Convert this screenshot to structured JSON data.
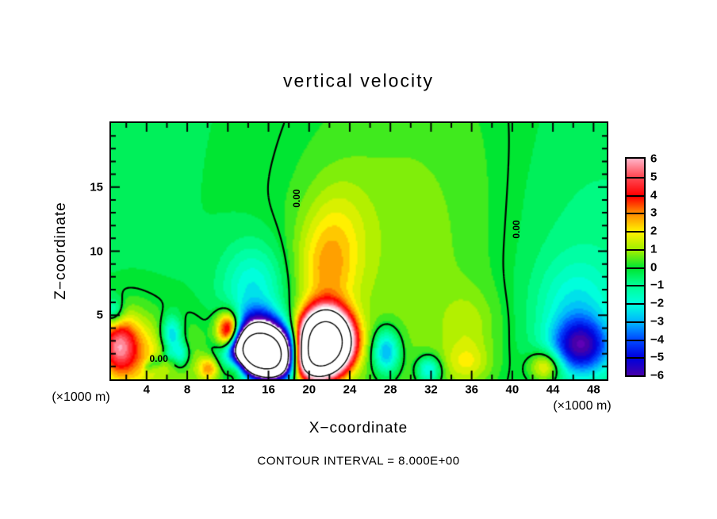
{
  "title": "vertical velocity",
  "caption": "CONTOUR INTERVAL = 8.000E+00",
  "axes": {
    "x": {
      "title": "X−coordinate",
      "unit_left": "(×1000 m)",
      "unit_right": "(×1000 m)",
      "min": 0.5,
      "max": 49.3,
      "tick_label_values": [
        4,
        8,
        12,
        16,
        20,
        24,
        28,
        32,
        36,
        40,
        44,
        48
      ],
      "tick_labels": [
        "4",
        "8",
        "12",
        "16",
        "20",
        "24",
        "28",
        "32",
        "36",
        "40",
        "44",
        "48"
      ],
      "minor_step": 2,
      "major_step": 4
    },
    "z": {
      "title": "Z−coordinate",
      "min": 0,
      "max": 20,
      "tick_label_values": [
        5,
        10,
        15
      ],
      "tick_labels": [
        "5",
        "10",
        "15"
      ],
      "minor_step": 1,
      "major_step": 5
    }
  },
  "colorbar": {
    "tick_labels": [
      "6",
      "5",
      "4",
      "3",
      "2",
      "1",
      "0",
      "−1",
      "−2",
      "−3",
      "−4",
      "−5",
      "−6"
    ],
    "tick_values": [
      6,
      5,
      4,
      3,
      2,
      1,
      0,
      -1,
      -2,
      -3,
      -4,
      -5,
      -6
    ]
  },
  "chart_data": {
    "type": "contour",
    "title": "vertical velocity",
    "xlabel": "X−coordinate",
    "ylabel": "Z−coordinate",
    "x_unit": "(×1000 m)",
    "z_unit": "(×1000 m)",
    "x_range": [
      0.5,
      49.3
    ],
    "z_range": [
      0,
      20
    ],
    "grid": false,
    "contour_interval": 8.0,
    "line_levels_solid": [
      0,
      8,
      16
    ],
    "line_levels_dashed": [
      -8,
      -16
    ],
    "zero_labels": [
      {
        "text": "0.00",
        "x": 18.8,
        "z": 14.1,
        "rot": -90
      },
      {
        "text": "0.00",
        "x": 40.4,
        "z": 11.7,
        "rot": -90
      },
      {
        "text": "0.00",
        "x": 5.2,
        "z": 1.6,
        "rot": 0
      }
    ],
    "colormap": {
      "out_of_range": "#ffffff",
      "white_cutoff": 6.95,
      "quantize": 0.4,
      "anchors": {
        "-7": "#8200c8",
        "-6": "#4600aa",
        "-5": "#0000dc",
        "-4": "#0046ff",
        "-3": "#00b4ff",
        "-2": "#00ffdc",
        "-1": "#00ff96",
        "0": "#00e632",
        "1": "#a0f000",
        "2": "#fff000",
        "3": "#ff8c00",
        "4": "#ff0000",
        "5": "#ff4650",
        "6": "#ffb4c8",
        "7": "#ffe6ee"
      }
    },
    "field_blobs": [
      {
        "kind": "base-offset",
        "x": 25,
        "z": 10,
        "sx": 500,
        "sz": 500,
        "a": -0.25
      },
      {
        "kind": "broad-positive-mid",
        "x": 30,
        "z": 9,
        "sx": 8.5,
        "sz": 12,
        "a": 1.1
      },
      {
        "kind": "left-low-positive",
        "x": 6,
        "z": 1.5,
        "sx": 4.5,
        "sz": 2.2,
        "a": 1.2
      },
      {
        "kind": "right-negative",
        "x": 47,
        "z": 8,
        "sx": 7,
        "sz": 8,
        "a": -0.7
      },
      {
        "kind": "downdraft-pocket",
        "x": 14.5,
        "z": 7,
        "sx": 2.2,
        "sz": 2.5,
        "a": -2.2
      },
      {
        "kind": "downdraft-wedge",
        "x": 15,
        "z": 4.8,
        "sx": 1.7,
        "sz": 0.9,
        "a": -1.8
      },
      {
        "kind": "downdraft-core",
        "x": 15.2,
        "z": 2.3,
        "sx": 1.9,
        "sz": 1.2,
        "a": -26
      },
      {
        "kind": "downdraft-side",
        "x": 16.8,
        "z": 1.0,
        "sx": 1.4,
        "sz": 0.9,
        "a": -6
      },
      {
        "kind": "updraft-core",
        "x": 21.6,
        "z": 2.9,
        "sx": 1.6,
        "sz": 1.5,
        "a": 26
      },
      {
        "kind": "updraft-side",
        "x": 20.0,
        "z": 1.2,
        "sx": 1.4,
        "sz": 1.0,
        "a": 6
      },
      {
        "kind": "updraft-plume",
        "x": 21.7,
        "z": 8.2,
        "sx": 2.1,
        "sz": 2.8,
        "a": 2.0
      },
      {
        "kind": "plume-upper",
        "x": 22.8,
        "z": 12,
        "sx": 2.4,
        "sz": 3.0,
        "a": 1.0
      },
      {
        "kind": "left-red-blob",
        "x": 1.1,
        "z": 2.6,
        "sx": 1.2,
        "sz": 1.5,
        "a": 3.8
      },
      {
        "kind": "left-yellow-halo",
        "x": 2.3,
        "z": 2.2,
        "sx": 2.0,
        "sz": 2.3,
        "a": 2.0
      },
      {
        "kind": "left-edge-cyan",
        "x": 0.7,
        "z": 5.2,
        "sx": 0.7,
        "sz": 0.8,
        "a": -2.2
      },
      {
        "kind": "left-blue-spot-1",
        "x": 6.4,
        "z": 3.4,
        "sx": 0.7,
        "sz": 1.0,
        "a": -3.2
      },
      {
        "kind": "left-blue-spot-2",
        "x": 7.3,
        "z": 1.9,
        "sx": 0.6,
        "sz": 0.7,
        "a": -2.4
      },
      {
        "kind": "zero-circle-1",
        "x": 4.1,
        "z": 0.95,
        "sx": 0.35,
        "sz": 0.3,
        "a": -1.3
      },
      {
        "kind": "zero-circle-2",
        "x": 4.9,
        "z": 1.35,
        "sx": 0.45,
        "sz": 0.35,
        "a": -1.4
      },
      {
        "kind": "zero-circle-3",
        "x": 6.05,
        "z": 1.9,
        "sx": 0.4,
        "sz": 0.35,
        "a": -1.2
      },
      {
        "kind": "orange-blob-a",
        "x": 12.1,
        "z": 3.6,
        "sx": 0.85,
        "sz": 1.05,
        "a": 7.5
      },
      {
        "kind": "orange-blob-b",
        "x": 12.9,
        "z": 1.0,
        "sx": 0.8,
        "sz": 0.8,
        "a": 3.4
      },
      {
        "kind": "orange-blob-c",
        "x": 10.1,
        "z": 0.8,
        "sx": 0.75,
        "sz": 0.65,
        "a": 2.6
      },
      {
        "kind": "negative-loop",
        "x": 27.6,
        "z": 2.1,
        "sx": 0.95,
        "sz": 1.25,
        "a": -3.6
      },
      {
        "kind": "cyan-bottom-spot",
        "x": 31.8,
        "z": 0.7,
        "sx": 0.85,
        "sz": 0.75,
        "a": -2.8
      },
      {
        "kind": "mid-yellow-patch-a",
        "x": 35.6,
        "z": 1.2,
        "sx": 1.6,
        "sz": 1.1,
        "a": 1.3
      },
      {
        "kind": "mid-yellow-patch-b",
        "x": 35.8,
        "z": 4.2,
        "sx": 2.0,
        "sz": 2.0,
        "a": 0.9
      },
      {
        "kind": "right-yellow-spot",
        "x": 43.4,
        "z": 1.0,
        "sx": 1.1,
        "sz": 0.85,
        "a": 2.8
      },
      {
        "kind": "right-blue-blob",
        "x": 46.8,
        "z": 2.5,
        "sx": 2.0,
        "sz": 1.5,
        "a": -4.8
      },
      {
        "kind": "right-blue-halo",
        "x": 46.3,
        "z": 5.5,
        "sx": 2.6,
        "sz": 2.6,
        "a": -1.6
      }
    ]
  }
}
